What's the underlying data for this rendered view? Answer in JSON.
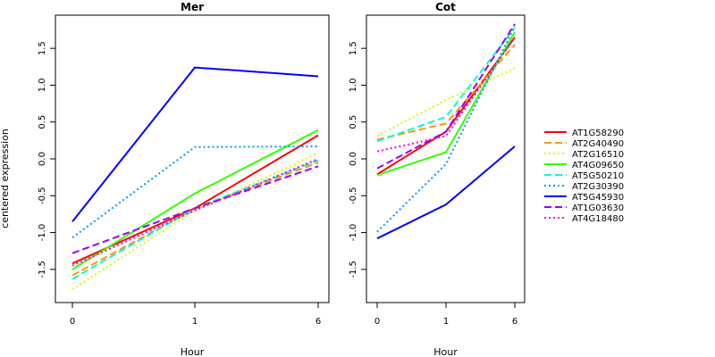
{
  "chart_data": {
    "type": "line",
    "ylabel": "centered expression",
    "xlabel": "Hour",
    "x_categories": [
      "0",
      "1",
      "6"
    ],
    "ylim": [
      -1.95,
      1.95
    ],
    "yticks": [
      -1.5,
      -1.0,
      -0.5,
      0.0,
      0.5,
      1.0,
      1.5
    ],
    "ytick_labels": [
      "-1.5",
      "-1.0",
      "-0.5",
      "0.0",
      "0.5",
      "1.0",
      "1.5"
    ],
    "legend": {
      "placement": "right",
      "entries": [
        {
          "name": "AT1G58290",
          "color": "#ff0000",
          "dash": "solid"
        },
        {
          "name": "AT2G40490",
          "color": "#ff9900",
          "dash": "dashed"
        },
        {
          "name": "AT2G16510",
          "color": "#ccff00",
          "dash": "dotted"
        },
        {
          "name": "AT4G09650",
          "color": "#33ff00",
          "dash": "solid"
        },
        {
          "name": "AT5G50210",
          "color": "#00ffcc",
          "dash": "dashed"
        },
        {
          "name": "AT2G30390",
          "color": "#0099ff",
          "dash": "dotted"
        },
        {
          "name": "AT5G45930",
          "color": "#0000ff",
          "dash": "solid"
        },
        {
          "name": "AT1G03630",
          "color": "#9900ff",
          "dash": "dashed"
        },
        {
          "name": "AT4G18480",
          "color": "#ff00cc",
          "dash": "dotted"
        }
      ]
    },
    "panels": [
      {
        "title": "Mer",
        "series": [
          {
            "name": "AT1G58290",
            "values": [
              -1.42,
              -0.67,
              0.32
            ]
          },
          {
            "name": "AT2G40490",
            "values": [
              -1.58,
              -0.68,
              -0.05
            ]
          },
          {
            "name": "AT2G16510",
            "values": [
              -1.77,
              -0.7,
              0.08
            ]
          },
          {
            "name": "AT4G09650",
            "values": [
              -1.5,
              -0.47,
              0.39
            ]
          },
          {
            "name": "AT5G50210",
            "values": [
              -1.63,
              -0.67,
              -0.02
            ]
          },
          {
            "name": "AT2G30390",
            "values": [
              -1.07,
              0.16,
              0.17
            ]
          },
          {
            "name": "AT5G45930",
            "values": [
              -0.85,
              1.24,
              1.12
            ]
          },
          {
            "name": "AT1G03630",
            "values": [
              -1.28,
              -0.67,
              -0.1
            ]
          },
          {
            "name": "AT4G18480",
            "values": [
              -1.45,
              -0.7,
              0.0
            ]
          }
        ]
      },
      {
        "title": "Cot",
        "series": [
          {
            "name": "AT1G58290",
            "values": [
              -0.21,
              0.37,
              1.65
            ]
          },
          {
            "name": "AT2G40490",
            "values": [
              0.26,
              0.48,
              1.55
            ]
          },
          {
            "name": "AT2G16510",
            "values": [
              0.31,
              0.8,
              1.23
            ]
          },
          {
            "name": "AT4G09650",
            "values": [
              -0.22,
              0.09,
              1.72
            ]
          },
          {
            "name": "AT5G50210",
            "values": [
              0.24,
              0.57,
              1.78
            ]
          },
          {
            "name": "AT2G30390",
            "values": [
              -0.99,
              -0.07,
              1.8
            ]
          },
          {
            "name": "AT5G45930",
            "values": [
              -1.08,
              -0.62,
              0.17
            ]
          },
          {
            "name": "AT1G03630",
            "values": [
              -0.13,
              0.37,
              1.83
            ]
          },
          {
            "name": "AT4G18480",
            "values": [
              0.1,
              0.31,
              1.65
            ]
          }
        ]
      }
    ]
  }
}
